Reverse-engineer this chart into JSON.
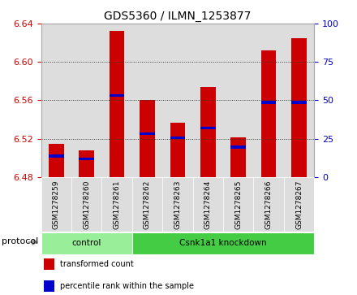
{
  "title": "GDS5360 / ILMN_1253877",
  "samples": [
    "GSM1278259",
    "GSM1278260",
    "GSM1278261",
    "GSM1278262",
    "GSM1278263",
    "GSM1278264",
    "GSM1278265",
    "GSM1278266",
    "GSM1278267"
  ],
  "bar_bottoms": [
    6.48,
    6.48,
    6.48,
    6.48,
    6.48,
    6.48,
    6.48,
    6.48,
    6.48
  ],
  "bar_tops": [
    6.515,
    6.508,
    6.632,
    6.56,
    6.537,
    6.574,
    6.521,
    6.612,
    6.625
  ],
  "percentile_values": [
    6.502,
    6.499,
    6.565,
    6.525,
    6.521,
    6.531,
    6.511,
    6.558,
    6.558
  ],
  "ylim": [
    6.48,
    6.64
  ],
  "yticks": [
    6.48,
    6.52,
    6.56,
    6.6,
    6.64
  ],
  "right_yticks": [
    0,
    25,
    50,
    75,
    100
  ],
  "right_ylim": [
    0,
    100
  ],
  "bar_color": "#cc0000",
  "percentile_color": "#0000cc",
  "grid_color": "#000000",
  "left_tick_color": "#cc0000",
  "right_tick_color": "#0000cc",
  "col_bg_color": "#dddddd",
  "protocol_groups": [
    {
      "label": "control",
      "start": 0,
      "end": 3,
      "color": "#99ee99"
    },
    {
      "label": "Csnk1a1 knockdown",
      "start": 3,
      "end": 9,
      "color": "#44cc44"
    }
  ],
  "protocol_label": "protocol",
  "bar_width": 0.5,
  "legend_items": [
    {
      "label": "transformed count",
      "color": "#cc0000"
    },
    {
      "label": "percentile rank within the sample",
      "color": "#0000cc"
    }
  ]
}
